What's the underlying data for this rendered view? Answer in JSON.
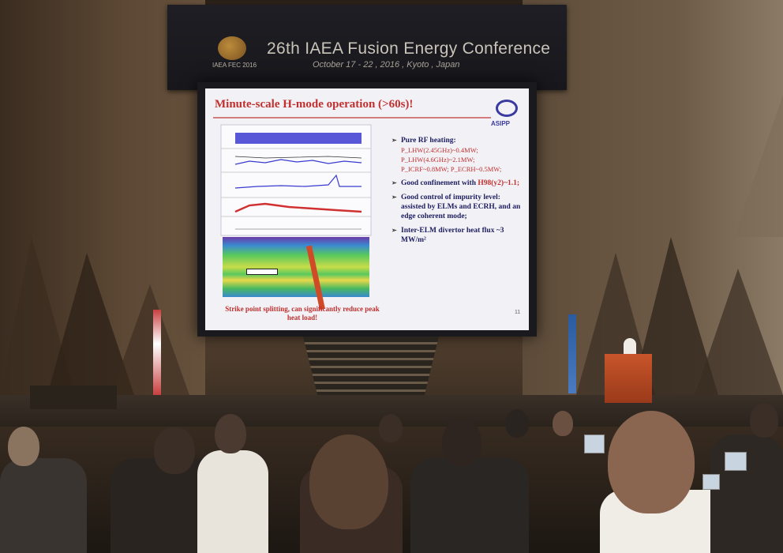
{
  "banner": {
    "logo_caption": "IAEA FEC 2016",
    "title": "26th IAEA Fusion Energy Conference",
    "date_line": "October 17 - 22 , 2016 , Kyoto , Japan"
  },
  "slide": {
    "title": "Minute-scale H-mode operation (>60s)!",
    "logo_label": "ASIPP",
    "bullets": [
      {
        "label": "Pure RF heating:",
        "sub": "P_LHW(2.45GHz)~0.4MW; P_LHW(4.6GHz)~2.1MW; P_ICRF~0.8MW; P_ECRH~0.5MW;"
      },
      {
        "label": "Good confinement with",
        "hl": "H98(y2)~1.1;"
      },
      {
        "label": "Good control of impurity level: assisted by ELMs and ECRH, and an edge coherent mode;"
      },
      {
        "label": "Inter-ELM divertor heat flux ~3 MW/m²"
      }
    ],
    "caption": "Strike point splitting, can significantly reduce peak heat load!",
    "page_number": "11"
  },
  "colors": {
    "slide_accent": "#c0302e",
    "slide_text": "#1d1d60",
    "podium": "#c8552a"
  }
}
